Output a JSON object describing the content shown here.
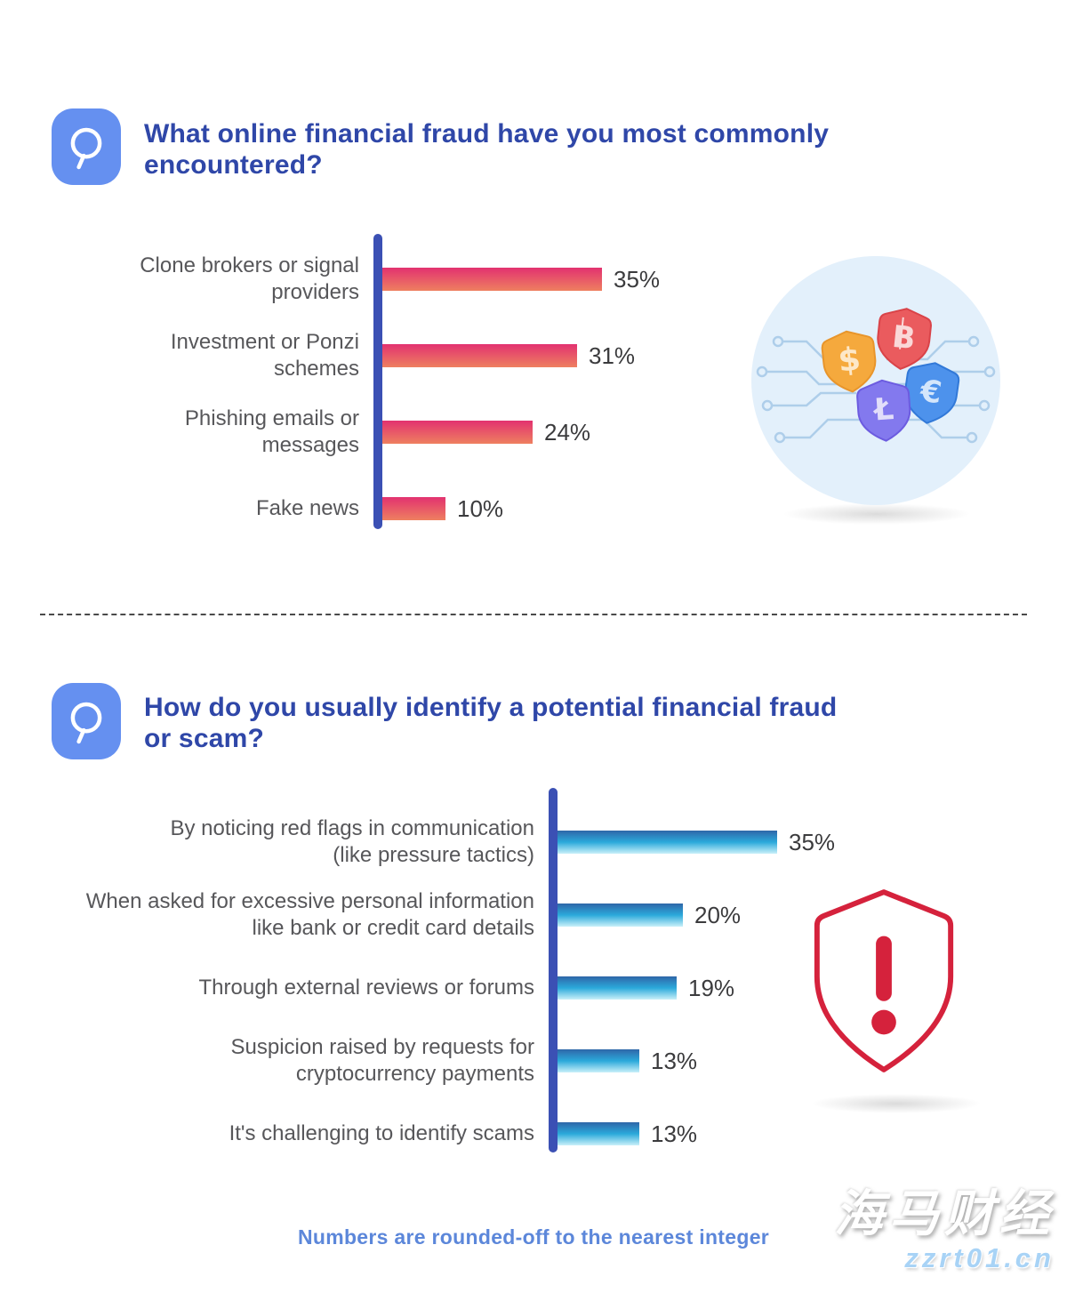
{
  "page": {
    "footer_note": "Numbers are rounded-off to the nearest integer",
    "watermark": {
      "line1": "海马财经",
      "line2": "zzrt01.cn"
    }
  },
  "questions": [
    {
      "icon": "Q",
      "title": "What online financial fraud have you most commonly encountered?",
      "title_display": "What online financial fraud have you most commonly\nencountered?",
      "illustration": "fintech-currency-shields"
    },
    {
      "icon": "Q",
      "title": "How do you usually identify a potential financial fraud or scam?",
      "title_display": "How do you usually identify a potential financial fraud\nor scam?",
      "illustration": "alert-shield"
    }
  ],
  "chart_data": [
    {
      "type": "bar",
      "orientation": "horizontal",
      "title": "What online financial fraud have you most commonly encountered?",
      "categories": [
        "Clone brokers or signal providers",
        "Investment or Ponzi schemes",
        "Phishing emails or messages",
        "Fake news"
      ],
      "display_labels": [
        "Clone brokers or signal\nproviders",
        "Investment or Ponzi\nschemes",
        "Phishing emails or\nmessages",
        "Fake news"
      ],
      "values": [
        35,
        31,
        24,
        10
      ],
      "value_suffix": "%",
      "xlim": [
        0,
        40
      ],
      "grid": false,
      "legend": false,
      "bar_gradient": [
        "#E23270",
        "#EE8060"
      ],
      "axis_color": "#3B50B4"
    },
    {
      "type": "bar",
      "orientation": "horizontal",
      "title": "How do you usually identify a potential financial fraud or scam?",
      "categories": [
        "By noticing red flags in communication (like pressure tactics)",
        "When asked for excessive personal information like bank or credit card details",
        "Through external reviews or forums",
        "Suspicion raised by requests for cryptocurrency payments",
        "It's challenging to identify scams"
      ],
      "display_labels": [
        "By noticing red flags in communication\n(like pressure tactics)",
        "When asked for excessive personal information\nlike bank or credit card details",
        "Through external reviews or forums",
        "Suspicion raised by requests for\ncryptocurrency payments",
        "It's challenging to identify scams"
      ],
      "values": [
        35,
        20,
        19,
        13,
        13
      ],
      "value_suffix": "%",
      "xlim": [
        0,
        40
      ],
      "grid": false,
      "legend": false,
      "bar_gradient": [
        "#2F66A8",
        "#2BA9DB",
        "#C9F0F9"
      ],
      "axis_color": "#3B50B4"
    }
  ],
  "colors": {
    "question_icon_bg": "#6590F0",
    "title_text": "#2F47A8",
    "label_text": "#57575A",
    "value_text": "#3B3B3D",
    "axis": "#3B50B4",
    "pink_bar_top": "#E23270",
    "pink_bar_bottom": "#EE8060",
    "blue_bar_top": "#2F66A8",
    "blue_bar_bottom": "#C9F0F9",
    "footer_text": "#5C87DA",
    "alert_red": "#D5223C",
    "illustration_circle": "#E3F0FB"
  }
}
